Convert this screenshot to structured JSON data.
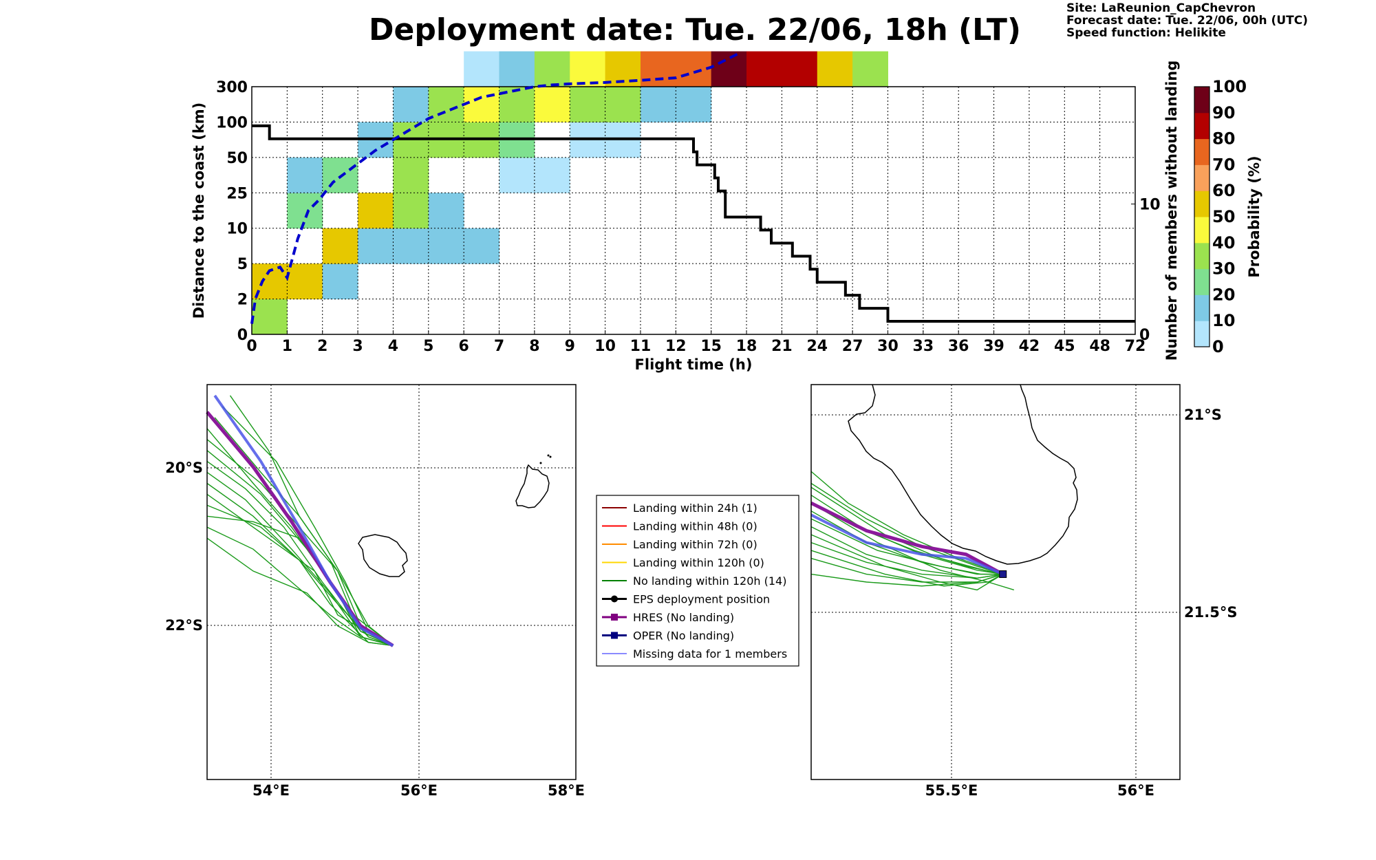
{
  "title": "Deployment date: Tue. 22/06, 18h (LT)",
  "info": [
    "Site: LaReunion_CapChevron",
    "Forecast date: Tue. 22/06, 00h (UTC)",
    "Speed function: Helikite"
  ],
  "colors": {
    "prob": [
      "#b3e5fc",
      "#7ecae5",
      "#7fe090",
      "#9be24f",
      "#fafa3c",
      "#e6c800",
      "#f9a15b",
      "#e8661f",
      "#b30000",
      "#6e0018"
    ],
    "median_line": "#0000cc",
    "members_line": "#000000",
    "coast": "#000000",
    "members_green": "#1a9a1a",
    "hres": "#8b1a9b",
    "oper": "#1a1a8c",
    "missing": "#4a55e8"
  },
  "chart_data": [
    {
      "type": "heatmap",
      "xlabel": "Flight time (h)",
      "ylabel": "Distance to the coast (km)",
      "y2label": "Number of members without landing",
      "x_ticks": [
        "0",
        "1",
        "2",
        "3",
        "4",
        "5",
        "6",
        "7",
        "8",
        "9",
        "10",
        "11",
        "12",
        "15",
        "18",
        "21",
        "24",
        "27",
        "30",
        "33",
        "36",
        "39",
        "42",
        "45",
        "48",
        "72"
      ],
      "y_ticks": [
        "0",
        "2",
        "5",
        "10",
        "25",
        "50",
        "100",
        "300"
      ],
      "y2_ticks": [
        "0",
        "10"
      ],
      "y2_range": [
        0,
        19
      ],
      "grid": true,
      "colorbar": {
        "label": "Probability (%)",
        "ticks": [
          "0",
          "10",
          "20",
          "30",
          "40",
          "50",
          "60",
          "70",
          "80",
          "90",
          "100"
        ]
      },
      "cells": [
        [
          0,
          0,
          30
        ],
        [
          0,
          1,
          50
        ],
        [
          1,
          1,
          50
        ],
        [
          1,
          3,
          20
        ],
        [
          1,
          4,
          10
        ],
        [
          2,
          1,
          10
        ],
        [
          2,
          2,
          50
        ],
        [
          2,
          4,
          20
        ],
        [
          3,
          2,
          10
        ],
        [
          3,
          3,
          50
        ],
        [
          3,
          5,
          10
        ],
        [
          4,
          2,
          10
        ],
        [
          4,
          3,
          30
        ],
        [
          4,
          4,
          30
        ],
        [
          4,
          5,
          30
        ],
        [
          4,
          6,
          10
        ],
        [
          5,
          2,
          10
        ],
        [
          5,
          3,
          10
        ],
        [
          5,
          5,
          30
        ],
        [
          5,
          6,
          30
        ],
        [
          6,
          2,
          10
        ],
        [
          6,
          5,
          30
        ],
        [
          6,
          6,
          40
        ],
        [
          6,
          7,
          0
        ],
        [
          7,
          4,
          0
        ],
        [
          7,
          5,
          20
        ],
        [
          7,
          6,
          30
        ],
        [
          7,
          7,
          10
        ],
        [
          8,
          4,
          0
        ],
        [
          8,
          6,
          40
        ],
        [
          8,
          7,
          30
        ],
        [
          9,
          5,
          0
        ],
        [
          9,
          6,
          30
        ],
        [
          9,
          7,
          40
        ],
        [
          10,
          5,
          0
        ],
        [
          10,
          6,
          30
        ],
        [
          10,
          7,
          50
        ],
        [
          11,
          6,
          10
        ],
        [
          11,
          7,
          70
        ],
        [
          12,
          6,
          10
        ],
        [
          12,
          7,
          70
        ],
        [
          13,
          7,
          90
        ],
        [
          14,
          7,
          80
        ],
        [
          15,
          7,
          80
        ],
        [
          16,
          7,
          50
        ],
        [
          17,
          7,
          30
        ]
      ],
      "median_distance_x": [
        0,
        0.1,
        0.3,
        0.5,
        0.8,
        1,
        1.3,
        1.6,
        1.9,
        2.3,
        2.7,
        3.1,
        3.5,
        4,
        4.5,
        5,
        5.5,
        6,
        6.5,
        7,
        7.5,
        8,
        8.5,
        9,
        10,
        11,
        12,
        13,
        13.8
      ],
      "median_distance_y": [
        0.3,
        1,
        1.5,
        1.8,
        1.9,
        1.6,
        2.7,
        3.5,
        3.8,
        4.3,
        4.6,
        4.9,
        5.2,
        5.5,
        5.8,
        6.1,
        6.3,
        6.5,
        6.7,
        6.8,
        6.9,
        7,
        7.05,
        7.08,
        7.12,
        7.18,
        7.25,
        7.55,
        7.95
      ],
      "members_without_landing_x": [
        0,
        0.4,
        0.5,
        12.4,
        12.5,
        12.6,
        13,
        13.1,
        13.2,
        13.4,
        14.2,
        14.4,
        14.7,
        15.3,
        15.8,
        16,
        16.6,
        16.8,
        17,
        17.2,
        17.4,
        18,
        18.5
      ],
      "members_without_landing_y": [
        16,
        16,
        15,
        15,
        14,
        13,
        13,
        12,
        11,
        9,
        9,
        8,
        7,
        6,
        5,
        4,
        4,
        3,
        3,
        2,
        2,
        1,
        1
      ]
    },
    {
      "type": "scatter",
      "xlabel": "",
      "ylabel": "",
      "x_ticks": [
        "54°E",
        "56°E",
        "58°E"
      ],
      "y_ticks": [
        "20°S",
        "22°S"
      ],
      "xlim": [
        53.2,
        58.0
      ],
      "ylim": [
        -22.6,
        -19.0
      ],
      "end_point": [
        55.62,
        -21.38
      ],
      "members": [
        [
          [
            53.2,
            -19.9
          ],
          [
            53.8,
            -20.2
          ],
          [
            54.4,
            -20.6
          ],
          [
            54.9,
            -21.0
          ],
          [
            55.3,
            -21.3
          ],
          [
            55.62,
            -21.38
          ]
        ],
        [
          [
            53.2,
            -19.7
          ],
          [
            53.7,
            -19.95
          ],
          [
            54.2,
            -20.3
          ],
          [
            54.7,
            -20.8
          ],
          [
            55.2,
            -21.25
          ],
          [
            55.62,
            -21.38
          ]
        ],
        [
          [
            53.2,
            -20.3
          ],
          [
            53.8,
            -20.5
          ],
          [
            54.3,
            -20.8
          ],
          [
            54.8,
            -21.1
          ],
          [
            55.2,
            -21.3
          ],
          [
            55.62,
            -21.38
          ]
        ],
        [
          [
            53.2,
            -20.1
          ],
          [
            53.9,
            -20.3
          ],
          [
            54.4,
            -20.6
          ],
          [
            54.8,
            -21.0
          ],
          [
            55.3,
            -21.35
          ],
          [
            55.62,
            -21.38
          ]
        ],
        [
          [
            53.5,
            -19.1
          ],
          [
            54.0,
            -19.6
          ],
          [
            54.4,
            -20.2
          ],
          [
            54.9,
            -20.7
          ],
          [
            55.3,
            -21.2
          ],
          [
            55.62,
            -21.38
          ]
        ],
        [
          [
            53.2,
            -19.5
          ],
          [
            53.9,
            -19.9
          ],
          [
            54.4,
            -20.3
          ],
          [
            54.9,
            -20.7
          ],
          [
            55.2,
            -21.2
          ],
          [
            55.62,
            -21.38
          ]
        ],
        [
          [
            53.2,
            -20.0
          ],
          [
            54.0,
            -20.4
          ],
          [
            54.6,
            -20.7
          ],
          [
            54.9,
            -21.1
          ],
          [
            55.4,
            -21.3
          ],
          [
            55.62,
            -21.38
          ]
        ],
        [
          [
            53.3,
            -19.3
          ],
          [
            53.9,
            -19.8
          ],
          [
            54.4,
            -20.2
          ],
          [
            54.8,
            -20.6
          ],
          [
            55.1,
            -21.1
          ],
          [
            55.62,
            -21.38
          ]
        ],
        [
          [
            53.2,
            -19.8
          ],
          [
            53.7,
            -20.05
          ],
          [
            54.3,
            -20.5
          ],
          [
            54.8,
            -20.9
          ],
          [
            55.2,
            -21.3
          ],
          [
            55.62,
            -21.38
          ]
        ],
        [
          [
            53.2,
            -20.4
          ],
          [
            53.8,
            -20.7
          ],
          [
            54.5,
            -20.9
          ],
          [
            54.9,
            -21.2
          ],
          [
            55.3,
            -21.35
          ],
          [
            55.62,
            -21.38
          ]
        ],
        [
          [
            53.4,
            -19.2
          ],
          [
            54.1,
            -19.7
          ],
          [
            54.6,
            -20.3
          ],
          [
            55.0,
            -20.8
          ],
          [
            55.3,
            -21.25
          ],
          [
            55.62,
            -21.38
          ]
        ],
        [
          [
            53.2,
            -19.6
          ],
          [
            53.9,
            -20.0
          ],
          [
            54.5,
            -20.5
          ],
          [
            54.9,
            -20.9
          ],
          [
            55.2,
            -21.3
          ],
          [
            55.62,
            -21.38
          ]
        ],
        [
          [
            53.2,
            -20.2
          ],
          [
            53.8,
            -20.25
          ],
          [
            54.4,
            -20.4
          ],
          [
            54.9,
            -20.9
          ],
          [
            55.3,
            -21.3
          ],
          [
            55.62,
            -21.38
          ]
        ],
        [
          [
            53.2,
            -19.4
          ],
          [
            53.8,
            -19.9
          ],
          [
            54.3,
            -20.3
          ],
          [
            54.8,
            -20.8
          ],
          [
            55.2,
            -21.25
          ],
          [
            55.62,
            -21.38
          ]
        ]
      ],
      "hres": [
        [
          53.2,
          -19.25
        ],
        [
          53.8,
          -19.75
        ],
        [
          54.3,
          -20.25
        ],
        [
          54.8,
          -20.8
        ],
        [
          55.2,
          -21.2
        ],
        [
          55.62,
          -21.38
        ]
      ],
      "oper": [
        [
          53.3,
          -19.1
        ],
        [
          53.9,
          -19.7
        ],
        [
          54.4,
          -20.3
        ],
        [
          54.8,
          -20.8
        ],
        [
          55.2,
          -21.22
        ],
        [
          55.62,
          -21.38
        ]
      ]
    },
    {
      "type": "scatter",
      "xlabel": "",
      "ylabel": "",
      "x_ticks": [
        "55.5°E",
        "56°E"
      ],
      "y_ticks": [
        "21°S",
        "21.5°S"
      ],
      "xlim": [
        55.1,
        56.1
      ],
      "ylim": [
        -21.9,
        -20.9
      ],
      "end_point": [
        55.62,
        -21.38
      ],
      "members": [
        [
          [
            55.1,
            -21.15
          ],
          [
            55.25,
            -21.24
          ],
          [
            55.4,
            -21.31
          ],
          [
            55.55,
            -21.36
          ],
          [
            55.62,
            -21.38
          ]
        ],
        [
          [
            55.1,
            -21.18
          ],
          [
            55.25,
            -21.27
          ],
          [
            55.4,
            -21.33
          ],
          [
            55.55,
            -21.37
          ],
          [
            55.62,
            -21.38
          ]
        ],
        [
          [
            55.1,
            -21.22
          ],
          [
            55.25,
            -21.3
          ],
          [
            55.4,
            -21.35
          ],
          [
            55.55,
            -21.38
          ],
          [
            55.62,
            -21.38
          ]
        ],
        [
          [
            55.1,
            -21.26
          ],
          [
            55.25,
            -21.33
          ],
          [
            55.4,
            -21.37
          ],
          [
            55.55,
            -21.39
          ],
          [
            55.62,
            -21.38
          ]
        ],
        [
          [
            55.1,
            -21.3
          ],
          [
            55.25,
            -21.35
          ],
          [
            55.4,
            -21.38
          ],
          [
            55.55,
            -21.39
          ],
          [
            55.62,
            -21.38
          ]
        ],
        [
          [
            55.1,
            -21.34
          ],
          [
            55.25,
            -21.38
          ],
          [
            55.4,
            -21.4
          ],
          [
            55.55,
            -21.4
          ],
          [
            55.62,
            -21.38
          ]
        ],
        [
          [
            55.1,
            -21.12
          ],
          [
            55.2,
            -21.2
          ],
          [
            55.35,
            -21.28
          ],
          [
            55.5,
            -21.34
          ],
          [
            55.62,
            -21.38
          ]
        ],
        [
          [
            55.1,
            -21.2
          ],
          [
            55.28,
            -21.3
          ],
          [
            55.45,
            -21.37
          ],
          [
            55.58,
            -21.4
          ],
          [
            55.65,
            -21.42
          ]
        ],
        [
          [
            55.1,
            -21.28
          ],
          [
            55.3,
            -21.36
          ],
          [
            55.45,
            -21.4
          ],
          [
            55.55,
            -21.42
          ],
          [
            55.62,
            -21.38
          ]
        ],
        [
          [
            55.1,
            -21.24
          ],
          [
            55.28,
            -21.32
          ],
          [
            55.45,
            -21.36
          ],
          [
            55.56,
            -21.38
          ],
          [
            55.62,
            -21.38
          ]
        ],
        [
          [
            55.1,
            -21.32
          ],
          [
            55.3,
            -21.38
          ],
          [
            55.46,
            -21.41
          ],
          [
            55.58,
            -21.4
          ],
          [
            55.62,
            -21.38
          ]
        ],
        [
          [
            55.1,
            -21.16
          ],
          [
            55.3,
            -21.28
          ],
          [
            55.45,
            -21.34
          ],
          [
            55.57,
            -21.37
          ],
          [
            55.62,
            -21.38
          ]
        ],
        [
          [
            55.1,
            -21.38
          ],
          [
            55.25,
            -21.4
          ],
          [
            55.4,
            -21.41
          ],
          [
            55.55,
            -21.4
          ],
          [
            55.62,
            -21.38
          ]
        ],
        [
          [
            55.1,
            -21.2
          ],
          [
            55.22,
            -21.26
          ],
          [
            55.38,
            -21.32
          ],
          [
            55.52,
            -21.36
          ],
          [
            55.62,
            -21.38
          ]
        ]
      ],
      "hres": [
        [
          55.1,
          -21.2
        ],
        [
          55.25,
          -21.27
        ],
        [
          55.4,
          -21.31
        ],
        [
          55.52,
          -21.33
        ],
        [
          55.62,
          -21.38
        ]
      ],
      "oper": [
        [
          55.1,
          -21.23
        ],
        [
          55.25,
          -21.3
        ],
        [
          55.4,
          -21.33
        ],
        [
          55.52,
          -21.34
        ],
        [
          55.62,
          -21.38
        ]
      ]
    }
  ],
  "legend": [
    {
      "label": "Landing within 24h (1)",
      "color": "#8b0000",
      "kind": "line"
    },
    {
      "label": "Landing within 48h (0)",
      "color": "#ff0000",
      "kind": "line"
    },
    {
      "label": "Landing within 72h (0)",
      "color": "#ff8c00",
      "kind": "line"
    },
    {
      "label": "Landing within 120h (0)",
      "color": "#ffd700",
      "kind": "line"
    },
    {
      "label": "No landing within 120h (14)",
      "color": "#008000",
      "kind": "line"
    },
    {
      "label": "EPS deployment position",
      "color": "#000000",
      "kind": "circle"
    },
    {
      "label": "HRES (No landing)",
      "color": "#800080",
      "kind": "square"
    },
    {
      "label": "OPER (No landing)",
      "color": "#000080",
      "kind": "square"
    },
    {
      "label": "Missing data for 1 members",
      "color": "#4444ff",
      "kind": "thin"
    }
  ]
}
